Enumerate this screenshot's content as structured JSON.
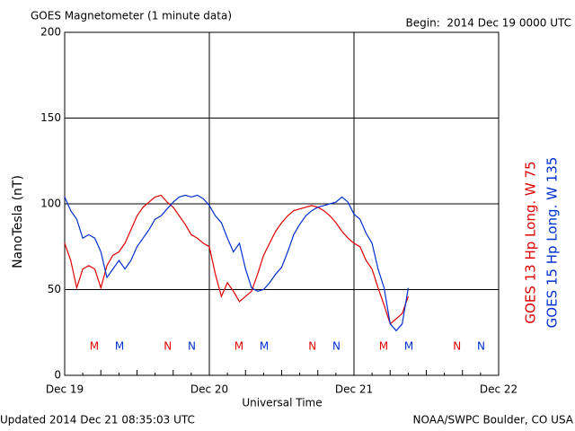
{
  "chart_data": {
    "type": "line",
    "title": "GOES Magnetometer (1 minute data)",
    "subtitle": "Begin:  2014 Dec 19 0000 UTC",
    "footer_left": "Updated 2014 Dec 21 08:35:03 UTC",
    "footer_right": "NOAA/SWPC Boulder, CO USA",
    "xlabel": "Universal Time",
    "ylabel": "NanoTesla (nT)",
    "x": [
      0,
      1,
      2,
      3,
      4,
      5,
      6,
      7,
      8,
      9,
      10,
      11,
      12,
      13,
      14,
      15,
      16,
      17,
      18,
      19,
      20,
      21,
      22,
      23,
      24,
      25,
      26,
      27,
      28,
      29,
      30,
      31,
      32,
      33,
      34,
      35,
      36,
      37,
      38,
      39,
      40,
      41,
      42,
      43,
      44,
      45,
      46,
      47,
      48,
      49,
      50,
      51,
      52,
      53,
      54,
      55,
      56,
      57
    ],
    "series": [
      {
        "name": "GOES 13 Hp  Long. W 75",
        "color": "#e00000",
        "values": [
          77,
          67,
          51,
          62,
          64,
          62,
          51,
          64,
          70,
          72,
          77,
          85,
          93,
          98,
          101,
          104,
          105,
          101,
          98,
          93,
          88,
          82,
          80,
          77,
          75,
          59,
          46,
          54,
          49,
          43,
          46,
          49,
          59,
          70,
          77,
          84,
          89,
          93,
          96,
          97,
          98,
          99,
          98,
          96,
          93,
          89,
          84,
          80,
          77,
          75,
          67,
          62,
          51,
          41,
          30,
          33,
          36,
          46
        ]
      },
      {
        "name": "GOES 15 Hp  Long. W 135",
        "color": "#0030d0",
        "values": [
          104,
          96,
          91,
          80,
          82,
          80,
          72,
          57,
          62,
          67,
          62,
          67,
          75,
          80,
          85,
          91,
          93,
          97,
          101,
          104,
          105,
          104,
          105,
          103,
          99,
          93,
          89,
          80,
          72,
          77,
          62,
          51,
          49,
          50,
          54,
          59,
          63,
          72,
          82,
          88,
          93,
          96,
          98,
          99,
          100,
          101,
          104,
          101,
          94,
          91,
          83,
          77,
          62,
          51,
          30,
          26,
          30,
          51
        ]
      }
    ],
    "annotations": [
      {
        "text": "M",
        "x": 4.9,
        "color": "#e00000"
      },
      {
        "text": "M",
        "x": 9.1,
        "color": "#0030d0"
      },
      {
        "text": "N",
        "x": 17.1,
        "color": "#e00000"
      },
      {
        "text": "N",
        "x": 21.1,
        "color": "#0030d0"
      },
      {
        "text": "M",
        "x": 28.9,
        "color": "#e00000"
      },
      {
        "text": "M",
        "x": 33.1,
        "color": "#0030d0"
      },
      {
        "text": "N",
        "x": 41.1,
        "color": "#e00000"
      },
      {
        "text": "N",
        "x": 45.1,
        "color": "#0030d0"
      },
      {
        "text": "M",
        "x": 52.9,
        "color": "#e00000"
      },
      {
        "text": "M",
        "x": 57.1,
        "color": "#0030d0"
      },
      {
        "text": "N",
        "x": 65.1,
        "color": "#e00000"
      },
      {
        "text": "N",
        "x": 69.1,
        "color": "#0030d0"
      }
    ],
    "xlim": [
      0,
      72
    ],
    "xticks": [
      {
        "value": 0,
        "label": "Dec 19"
      },
      {
        "value": 24,
        "label": "Dec 20"
      },
      {
        "value": 48,
        "label": "Dec 21"
      },
      {
        "value": 72,
        "label": "Dec 22"
      }
    ],
    "ylim": [
      0,
      200
    ],
    "yticks": [
      0,
      50,
      100,
      150,
      200
    ],
    "grid": true
  }
}
